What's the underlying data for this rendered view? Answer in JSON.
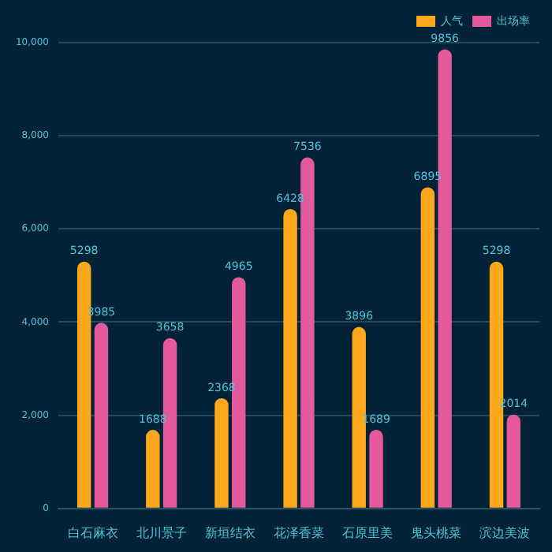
{
  "chart_data": {
    "type": "bar",
    "categories": [
      "白石麻衣",
      "北川景子",
      "新垣结衣",
      "花泽香菜",
      "石原里美",
      "鬼头桃菜",
      "滨边美波"
    ],
    "series": [
      {
        "name": "人气",
        "color": "#fca71c",
        "values": [
          5298,
          1688,
          2368,
          6428,
          3896,
          6895,
          5298
        ]
      },
      {
        "name": "出场率",
        "color": "#e4589c",
        "values": [
          3985,
          3658,
          4965,
          7536,
          1689,
          9856,
          2014
        ]
      }
    ],
    "ylim": [
      0,
      10000
    ],
    "yticks": [
      0,
      {
        "value": 2000,
        "label": "2,000"
      },
      {
        "value": 4000,
        "label": "4,000"
      },
      {
        "value": 6000,
        "label": "6,000"
      },
      {
        "value": 8000,
        "label": "8,000"
      },
      {
        "value": 10000,
        "label": "10,000"
      }
    ],
    "grid": "y",
    "legend": "top right",
    "data_labels": true
  }
}
